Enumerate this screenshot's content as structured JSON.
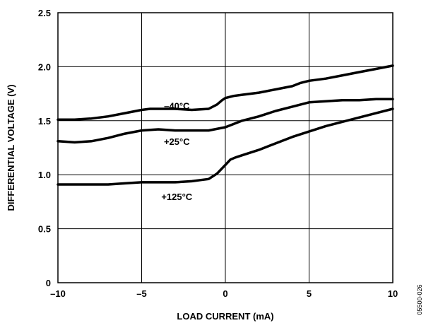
{
  "chart_data": {
    "type": "line",
    "xlabel": "LOAD CURRENT (mA)",
    "ylabel": "DIFFERENTIAL VOLTAGE (V)",
    "xlim": [
      -10,
      10
    ],
    "ylim": [
      0,
      2.5
    ],
    "x_ticks": [
      "–10",
      "–5",
      "0",
      "5",
      "10"
    ],
    "y_ticks": [
      "0",
      "0.5",
      "1.0",
      "1.5",
      "2.0",
      "2.5"
    ],
    "x_tick_values": [
      -10,
      -5,
      0,
      5,
      10
    ],
    "y_tick_values": [
      0,
      0.5,
      1.0,
      1.5,
      2.0,
      2.5
    ],
    "grid": true,
    "figure_id": "05500-026",
    "series": [
      {
        "name": "–40°C",
        "x": [
          -10,
          -9,
          -8,
          -7,
          -6,
          -5,
          -4.5,
          -4,
          -3,
          -2,
          -1,
          -0.5,
          -0.2,
          0,
          0.5,
          1,
          2,
          3,
          4,
          4.5,
          5,
          6,
          7,
          8,
          9,
          10
        ],
        "y": [
          1.51,
          1.51,
          1.52,
          1.54,
          1.57,
          1.6,
          1.61,
          1.61,
          1.61,
          1.6,
          1.61,
          1.65,
          1.69,
          1.71,
          1.73,
          1.74,
          1.76,
          1.79,
          1.82,
          1.85,
          1.87,
          1.89,
          1.92,
          1.95,
          1.98,
          2.01
        ]
      },
      {
        "name": "+25°C",
        "x": [
          -10,
          -9,
          -8,
          -7,
          -6,
          -5,
          -4,
          -3,
          -2,
          -1,
          0,
          0.5,
          1,
          2,
          3,
          4,
          5,
          6,
          7,
          8,
          9,
          10
        ],
        "y": [
          1.31,
          1.3,
          1.31,
          1.34,
          1.38,
          1.41,
          1.42,
          1.41,
          1.41,
          1.41,
          1.44,
          1.47,
          1.5,
          1.54,
          1.59,
          1.63,
          1.67,
          1.68,
          1.69,
          1.69,
          1.7,
          1.7
        ]
      },
      {
        "name": "+125°C",
        "x": [
          -10,
          -9,
          -8,
          -7,
          -6,
          -5,
          -4,
          -3,
          -2,
          -1.5,
          -1,
          -0.5,
          0,
          0.3,
          0.6,
          1,
          2,
          3,
          4,
          5,
          6,
          7,
          8,
          9,
          10
        ],
        "y": [
          0.91,
          0.91,
          0.91,
          0.91,
          0.92,
          0.93,
          0.93,
          0.93,
          0.94,
          0.95,
          0.96,
          1.01,
          1.09,
          1.14,
          1.16,
          1.18,
          1.23,
          1.29,
          1.35,
          1.4,
          1.45,
          1.49,
          1.53,
          1.57,
          1.61
        ]
      }
    ],
    "curve_labels": [
      {
        "text": "–40°C",
        "x": -2.9,
        "y": 1.64
      },
      {
        "text": "+25°C",
        "x": -2.9,
        "y": 1.31
      },
      {
        "text": "+125°C",
        "x": -2.9,
        "y": 0.8
      }
    ]
  }
}
